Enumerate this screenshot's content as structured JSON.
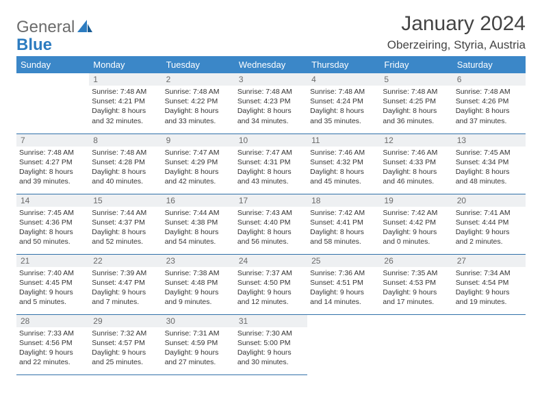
{
  "logo": {
    "text_general": "General",
    "text_blue": "Blue"
  },
  "title": "January 2024",
  "location": "Oberzeiring, Styria, Austria",
  "colors": {
    "header_bg": "#3b87c8",
    "header_text": "#ffffff",
    "daynum_bg": "#eef0f2",
    "border": "#2f6fa8",
    "logo_blue": "#2d7cc0"
  },
  "weekdays": [
    "Sunday",
    "Monday",
    "Tuesday",
    "Wednesday",
    "Thursday",
    "Friday",
    "Saturday"
  ],
  "weeks": [
    [
      null,
      {
        "n": "1",
        "sr": "7:48 AM",
        "ss": "4:21 PM",
        "dl": "8 hours and 32 minutes."
      },
      {
        "n": "2",
        "sr": "7:48 AM",
        "ss": "4:22 PM",
        "dl": "8 hours and 33 minutes."
      },
      {
        "n": "3",
        "sr": "7:48 AM",
        "ss": "4:23 PM",
        "dl": "8 hours and 34 minutes."
      },
      {
        "n": "4",
        "sr": "7:48 AM",
        "ss": "4:24 PM",
        "dl": "8 hours and 35 minutes."
      },
      {
        "n": "5",
        "sr": "7:48 AM",
        "ss": "4:25 PM",
        "dl": "8 hours and 36 minutes."
      },
      {
        "n": "6",
        "sr": "7:48 AM",
        "ss": "4:26 PM",
        "dl": "8 hours and 37 minutes."
      }
    ],
    [
      {
        "n": "7",
        "sr": "7:48 AM",
        "ss": "4:27 PM",
        "dl": "8 hours and 39 minutes."
      },
      {
        "n": "8",
        "sr": "7:48 AM",
        "ss": "4:28 PM",
        "dl": "8 hours and 40 minutes."
      },
      {
        "n": "9",
        "sr": "7:47 AM",
        "ss": "4:29 PM",
        "dl": "8 hours and 42 minutes."
      },
      {
        "n": "10",
        "sr": "7:47 AM",
        "ss": "4:31 PM",
        "dl": "8 hours and 43 minutes."
      },
      {
        "n": "11",
        "sr": "7:46 AM",
        "ss": "4:32 PM",
        "dl": "8 hours and 45 minutes."
      },
      {
        "n": "12",
        "sr": "7:46 AM",
        "ss": "4:33 PM",
        "dl": "8 hours and 46 minutes."
      },
      {
        "n": "13",
        "sr": "7:45 AM",
        "ss": "4:34 PM",
        "dl": "8 hours and 48 minutes."
      }
    ],
    [
      {
        "n": "14",
        "sr": "7:45 AM",
        "ss": "4:36 PM",
        "dl": "8 hours and 50 minutes."
      },
      {
        "n": "15",
        "sr": "7:44 AM",
        "ss": "4:37 PM",
        "dl": "8 hours and 52 minutes."
      },
      {
        "n": "16",
        "sr": "7:44 AM",
        "ss": "4:38 PM",
        "dl": "8 hours and 54 minutes."
      },
      {
        "n": "17",
        "sr": "7:43 AM",
        "ss": "4:40 PM",
        "dl": "8 hours and 56 minutes."
      },
      {
        "n": "18",
        "sr": "7:42 AM",
        "ss": "4:41 PM",
        "dl": "8 hours and 58 minutes."
      },
      {
        "n": "19",
        "sr": "7:42 AM",
        "ss": "4:42 PM",
        "dl": "9 hours and 0 minutes."
      },
      {
        "n": "20",
        "sr": "7:41 AM",
        "ss": "4:44 PM",
        "dl": "9 hours and 2 minutes."
      }
    ],
    [
      {
        "n": "21",
        "sr": "7:40 AM",
        "ss": "4:45 PM",
        "dl": "9 hours and 5 minutes."
      },
      {
        "n": "22",
        "sr": "7:39 AM",
        "ss": "4:47 PM",
        "dl": "9 hours and 7 minutes."
      },
      {
        "n": "23",
        "sr": "7:38 AM",
        "ss": "4:48 PM",
        "dl": "9 hours and 9 minutes."
      },
      {
        "n": "24",
        "sr": "7:37 AM",
        "ss": "4:50 PM",
        "dl": "9 hours and 12 minutes."
      },
      {
        "n": "25",
        "sr": "7:36 AM",
        "ss": "4:51 PM",
        "dl": "9 hours and 14 minutes."
      },
      {
        "n": "26",
        "sr": "7:35 AM",
        "ss": "4:53 PM",
        "dl": "9 hours and 17 minutes."
      },
      {
        "n": "27",
        "sr": "7:34 AM",
        "ss": "4:54 PM",
        "dl": "9 hours and 19 minutes."
      }
    ],
    [
      {
        "n": "28",
        "sr": "7:33 AM",
        "ss": "4:56 PM",
        "dl": "9 hours and 22 minutes."
      },
      {
        "n": "29",
        "sr": "7:32 AM",
        "ss": "4:57 PM",
        "dl": "9 hours and 25 minutes."
      },
      {
        "n": "30",
        "sr": "7:31 AM",
        "ss": "4:59 PM",
        "dl": "9 hours and 27 minutes."
      },
      {
        "n": "31",
        "sr": "7:30 AM",
        "ss": "5:00 PM",
        "dl": "9 hours and 30 minutes."
      },
      null,
      null,
      null
    ]
  ],
  "labels": {
    "sunrise": "Sunrise:",
    "sunset": "Sunset:",
    "daylight": "Daylight:"
  }
}
